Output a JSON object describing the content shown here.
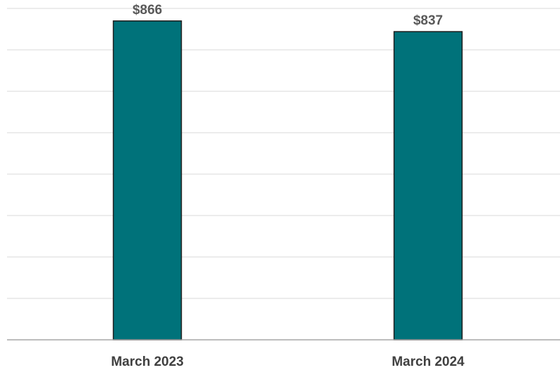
{
  "chart_data": {
    "type": "bar",
    "categories": [
      "March 2023",
      "March 2024"
    ],
    "values": [
      866,
      837
    ],
    "data_labels": [
      "$866",
      "$837"
    ],
    "title": "",
    "xlabel": "",
    "ylabel": "",
    "ylim": [
      0,
      900
    ],
    "grid": true,
    "legend": "none",
    "colors": {
      "bar": "#00727A",
      "bar_outline": "#1C1C1C",
      "grid": "#D9D9D9",
      "axis": "#A6A6A6",
      "label": "#595959"
    }
  }
}
